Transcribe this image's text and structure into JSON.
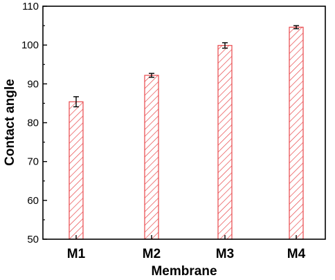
{
  "chart_data": {
    "type": "bar",
    "title": "",
    "xlabel": "Membrane",
    "ylabel": "Contact angle",
    "categories": [
      "M1",
      "M2",
      "M3",
      "M4"
    ],
    "values": [
      85.4,
      92.2,
      99.9,
      104.6
    ],
    "errors": [
      1.3,
      0.5,
      0.7,
      0.4
    ],
    "ylim": [
      50,
      110
    ],
    "yticks": [
      50,
      60,
      70,
      80,
      90,
      100,
      110
    ],
    "bar_style": {
      "fill": "hatched",
      "hatch_color": "#e8474a",
      "edge_color": "#e8474a",
      "error_color": "#000000"
    },
    "grid": false,
    "legend": "none"
  }
}
